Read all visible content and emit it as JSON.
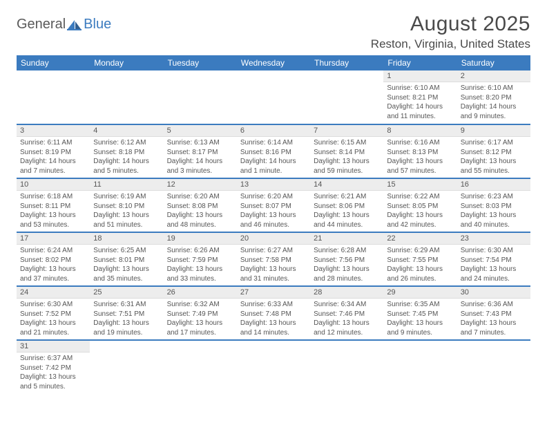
{
  "brand": {
    "part1": "General",
    "part2": "Blue"
  },
  "title": "August 2025",
  "location": "Reston, Virginia, United States",
  "colors": {
    "header_bg": "#3b7bbf",
    "header_text": "#ffffff",
    "daynum_bg": "#ededed",
    "text": "#555555",
    "row_border": "#3b7bbf"
  },
  "weekdays": [
    "Sunday",
    "Monday",
    "Tuesday",
    "Wednesday",
    "Thursday",
    "Friday",
    "Saturday"
  ],
  "weeks": [
    [
      null,
      null,
      null,
      null,
      null,
      {
        "n": "1",
        "sr": "6:10 AM",
        "ss": "8:21 PM",
        "dl": "14 hours and 11 minutes."
      },
      {
        "n": "2",
        "sr": "6:10 AM",
        "ss": "8:20 PM",
        "dl": "14 hours and 9 minutes."
      }
    ],
    [
      {
        "n": "3",
        "sr": "6:11 AM",
        "ss": "8:19 PM",
        "dl": "14 hours and 7 minutes."
      },
      {
        "n": "4",
        "sr": "6:12 AM",
        "ss": "8:18 PM",
        "dl": "14 hours and 5 minutes."
      },
      {
        "n": "5",
        "sr": "6:13 AM",
        "ss": "8:17 PM",
        "dl": "14 hours and 3 minutes."
      },
      {
        "n": "6",
        "sr": "6:14 AM",
        "ss": "8:16 PM",
        "dl": "14 hours and 1 minute."
      },
      {
        "n": "7",
        "sr": "6:15 AM",
        "ss": "8:14 PM",
        "dl": "13 hours and 59 minutes."
      },
      {
        "n": "8",
        "sr": "6:16 AM",
        "ss": "8:13 PM",
        "dl": "13 hours and 57 minutes."
      },
      {
        "n": "9",
        "sr": "6:17 AM",
        "ss": "8:12 PM",
        "dl": "13 hours and 55 minutes."
      }
    ],
    [
      {
        "n": "10",
        "sr": "6:18 AM",
        "ss": "8:11 PM",
        "dl": "13 hours and 53 minutes."
      },
      {
        "n": "11",
        "sr": "6:19 AM",
        "ss": "8:10 PM",
        "dl": "13 hours and 51 minutes."
      },
      {
        "n": "12",
        "sr": "6:20 AM",
        "ss": "8:08 PM",
        "dl": "13 hours and 48 minutes."
      },
      {
        "n": "13",
        "sr": "6:20 AM",
        "ss": "8:07 PM",
        "dl": "13 hours and 46 minutes."
      },
      {
        "n": "14",
        "sr": "6:21 AM",
        "ss": "8:06 PM",
        "dl": "13 hours and 44 minutes."
      },
      {
        "n": "15",
        "sr": "6:22 AM",
        "ss": "8:05 PM",
        "dl": "13 hours and 42 minutes."
      },
      {
        "n": "16",
        "sr": "6:23 AM",
        "ss": "8:03 PM",
        "dl": "13 hours and 40 minutes."
      }
    ],
    [
      {
        "n": "17",
        "sr": "6:24 AM",
        "ss": "8:02 PM",
        "dl": "13 hours and 37 minutes."
      },
      {
        "n": "18",
        "sr": "6:25 AM",
        "ss": "8:01 PM",
        "dl": "13 hours and 35 minutes."
      },
      {
        "n": "19",
        "sr": "6:26 AM",
        "ss": "7:59 PM",
        "dl": "13 hours and 33 minutes."
      },
      {
        "n": "20",
        "sr": "6:27 AM",
        "ss": "7:58 PM",
        "dl": "13 hours and 31 minutes."
      },
      {
        "n": "21",
        "sr": "6:28 AM",
        "ss": "7:56 PM",
        "dl": "13 hours and 28 minutes."
      },
      {
        "n": "22",
        "sr": "6:29 AM",
        "ss": "7:55 PM",
        "dl": "13 hours and 26 minutes."
      },
      {
        "n": "23",
        "sr": "6:30 AM",
        "ss": "7:54 PM",
        "dl": "13 hours and 24 minutes."
      }
    ],
    [
      {
        "n": "24",
        "sr": "6:30 AM",
        "ss": "7:52 PM",
        "dl": "13 hours and 21 minutes."
      },
      {
        "n": "25",
        "sr": "6:31 AM",
        "ss": "7:51 PM",
        "dl": "13 hours and 19 minutes."
      },
      {
        "n": "26",
        "sr": "6:32 AM",
        "ss": "7:49 PM",
        "dl": "13 hours and 17 minutes."
      },
      {
        "n": "27",
        "sr": "6:33 AM",
        "ss": "7:48 PM",
        "dl": "13 hours and 14 minutes."
      },
      {
        "n": "28",
        "sr": "6:34 AM",
        "ss": "7:46 PM",
        "dl": "13 hours and 12 minutes."
      },
      {
        "n": "29",
        "sr": "6:35 AM",
        "ss": "7:45 PM",
        "dl": "13 hours and 9 minutes."
      },
      {
        "n": "30",
        "sr": "6:36 AM",
        "ss": "7:43 PM",
        "dl": "13 hours and 7 minutes."
      }
    ],
    [
      {
        "n": "31",
        "sr": "6:37 AM",
        "ss": "7:42 PM",
        "dl": "13 hours and 5 minutes."
      },
      null,
      null,
      null,
      null,
      null,
      null
    ]
  ],
  "labels": {
    "sunrise": "Sunrise:",
    "sunset": "Sunset:",
    "daylight": "Daylight:"
  }
}
